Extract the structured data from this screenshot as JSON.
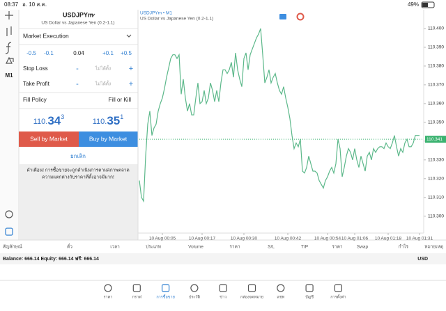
{
  "status_bar": {
    "time": "08:37",
    "date": "อ. 10 ส.ค.",
    "battery": "49%"
  },
  "toolbar": {
    "timeframe": "M1"
  },
  "order_panel": {
    "symbol": "USDJPYm",
    "description": "US Dollar vs Japanese Yen (0.2-1.1)",
    "execution": "Market Execution",
    "volume_steps": [
      "-0.5",
      "-0.1",
      "0.04",
      "+0.1",
      "+0.5"
    ],
    "stop_loss": {
      "label": "Stop Loss",
      "value": "ไม่ได้ตั้ง"
    },
    "take_profit": {
      "label": "Take Profit",
      "value": "ไม่ได้ตั้ง"
    },
    "decrease": "-",
    "increase": "+",
    "fill_policy": {
      "label": "Fill Policy",
      "value": "Fill or Kill"
    },
    "bid": {
      "prefix": "110.",
      "big": "34",
      "sup": "3"
    },
    "ask": {
      "prefix": "110.",
      "big": "35",
      "sup": "1"
    },
    "sell_button": "Sell by Market",
    "buy_button": "Buy by Market",
    "cancel": "ยกเลิก",
    "warning": [
      "คำเตือน! การซื้อขายจะถูกดำเนินการตามสภาพตลาด",
      "ความแตกต่างกับราคาที่ตั้งอาจมีมาก!"
    ]
  },
  "chart_data": {
    "type": "line",
    "title": "USDJPYm • M1",
    "subtitle": "US Dollar vs Japanese Yen (0.2-1.1)",
    "color": "#5cb88a",
    "values": [
      110.319,
      110.31,
      110.308,
      110.332,
      110.349,
      110.356,
      110.343,
      110.347,
      110.349,
      110.356,
      110.36,
      110.363,
      110.368,
      110.374,
      110.379,
      110.384,
      110.386,
      110.386,
      110.384,
      110.386,
      110.365,
      110.373,
      110.363,
      110.356,
      110.36,
      110.354,
      110.354,
      110.363,
      110.371,
      110.36,
      110.361,
      110.367,
      110.36,
      110.363,
      110.371,
      110.367,
      110.361,
      110.367,
      110.361,
      110.371,
      110.378,
      110.378,
      110.376,
      110.378,
      110.382,
      110.374,
      110.387,
      110.378,
      110.373,
      110.369,
      110.384,
      110.387,
      110.378,
      110.386,
      110.389,
      110.392,
      110.395,
      110.397,
      110.4,
      110.386,
      110.371,
      110.374,
      110.378,
      110.371,
      110.374,
      110.376,
      110.371,
      110.367,
      110.365,
      110.369,
      110.363,
      110.358,
      110.352,
      110.343,
      110.336,
      110.339,
      110.337,
      110.341,
      110.324,
      110.323,
      110.326,
      110.332,
      110.328,
      110.324,
      110.324,
      110.323,
      110.319,
      110.317,
      110.315,
      110.319,
      110.321,
      110.324,
      110.326,
      110.323,
      110.328,
      110.341,
      110.336,
      110.321,
      110.326,
      110.332,
      110.336,
      110.334,
      110.33,
      110.336,
      110.33,
      110.326,
      110.332,
      110.328,
      110.324,
      110.332,
      110.334,
      110.33,
      110.336,
      110.334,
      110.336,
      110.337,
      110.337,
      110.336,
      110.339,
      110.337,
      110.336,
      110.339,
      110.343,
      110.337,
      110.332,
      110.336,
      110.334,
      110.339,
      110.341,
      110.337,
      110.337,
      110.339,
      110.343,
      110.343,
      110.343
    ],
    "xlim": [
      0,
      136
    ],
    "xticks": [
      {
        "value": 11,
        "label": "10 Aug 00:05"
      },
      {
        "value": 30,
        "label": "10 Aug 00:17"
      },
      {
        "value": 50,
        "label": "10 Aug 00:30"
      },
      {
        "value": 71,
        "label": "10 Aug 00:42"
      },
      {
        "value": 90,
        "label": "10 Aug 00:54"
      },
      {
        "value": 103,
        "label": "10 Aug 01:06"
      },
      {
        "value": 119,
        "label": "10 Aug 01:18"
      },
      {
        "value": 134,
        "label": "10 Aug 01:31"
      }
    ],
    "ylim": [
      110.291,
      110.41
    ],
    "yticks": [
      {
        "value": 110.3,
        "label": "110.300"
      },
      {
        "value": 110.31,
        "label": "110.310"
      },
      {
        "value": 110.32,
        "label": "110.320"
      },
      {
        "value": 110.33,
        "label": "110.330"
      },
      {
        "value": 110.34,
        "label": "110.340"
      },
      {
        "value": 110.35,
        "label": "110.350"
      },
      {
        "value": 110.36,
        "label": "110.360"
      },
      {
        "value": 110.37,
        "label": "110.370"
      },
      {
        "value": 110.38,
        "label": "110.380"
      },
      {
        "value": 110.39,
        "label": "110.390"
      },
      {
        "value": 110.4,
        "label": "110.400"
      }
    ],
    "price_line": {
      "value": 110.341,
      "label": "110.341",
      "color": "#3cb371"
    }
  },
  "trade_table": {
    "columns": [
      "สัญลักษณ์",
      "ตั๋ว",
      "เวลา",
      "ประเภท",
      "Volume",
      "ราคา",
      "S/L",
      "T/P",
      "ราคา",
      "Swap",
      "กำไร",
      "หมายเหตุ"
    ],
    "balance": "Balance: 666.14 Equity: 666.14 ฟรี: 666.14",
    "currency": "USD"
  },
  "tab_bar": {
    "tabs": [
      "ราคา",
      "กราฟ",
      "การซื้อขาย",
      "ประวัติ",
      "ข่าว",
      "กล่องจดหมาย",
      "แชท",
      "บัญชี",
      "การตั้งค่า"
    ],
    "active": 2
  }
}
